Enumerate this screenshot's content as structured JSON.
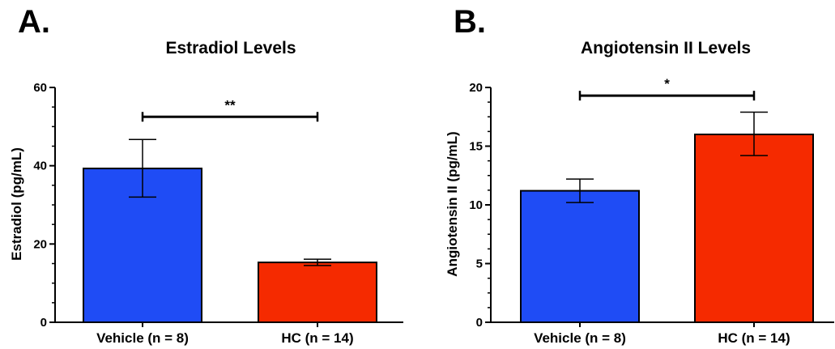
{
  "chart_data": [
    {
      "type": "bar",
      "panel_label": "A.",
      "title": "Estradiol Levels",
      "xlabel": "",
      "ylabel": "Estradiol (pg/mL)",
      "ylim": [
        0,
        60
      ],
      "yticks": [
        0,
        20,
        40,
        60
      ],
      "categories": [
        "Vehicle (n = 8)",
        "HC (n = 14)"
      ],
      "values": [
        39.3,
        15.3
      ],
      "error_low": [
        32.0,
        14.5
      ],
      "error_high": [
        46.7,
        16.1
      ],
      "colors": [
        "#1f4cf5",
        "#f52a00"
      ],
      "significance": {
        "label": "**",
        "between": [
          0,
          1
        ],
        "y": 52.5
      },
      "grid": false
    },
    {
      "type": "bar",
      "panel_label": "B.",
      "title": "Angiotensin II Levels",
      "xlabel": "",
      "ylabel": "Angiotensin II (pg/mL)",
      "ylim": [
        0,
        20
      ],
      "yticks": [
        0,
        5,
        10,
        15,
        20
      ],
      "categories": [
        "Vehicle (n = 8)",
        "HC (n = 14)"
      ],
      "values": [
        11.2,
        16.0
      ],
      "error_low": [
        10.2,
        14.2
      ],
      "error_high": [
        12.2,
        17.9
      ],
      "colors": [
        "#1f4cf5",
        "#f52a00"
      ],
      "significance": {
        "label": "*",
        "between": [
          0,
          1
        ],
        "y": 19.3
      },
      "grid": false
    }
  ]
}
